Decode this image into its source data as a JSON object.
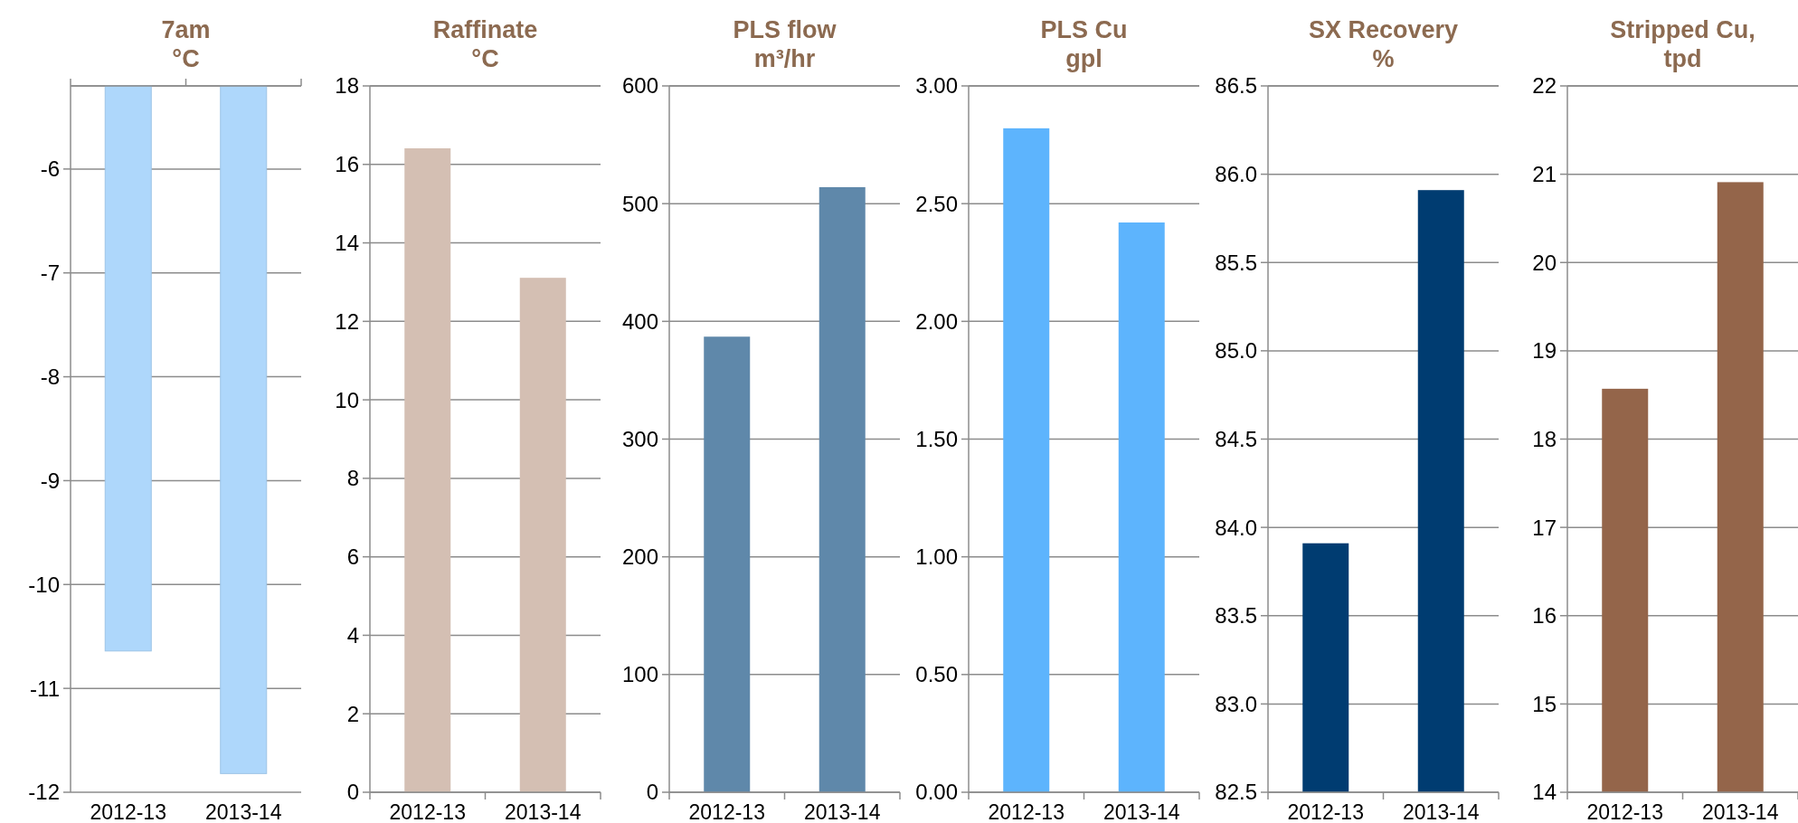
{
  "chart_data": [
    {
      "type": "bar",
      "title": "7am\n°C",
      "categories": [
        "2012-13",
        "2013-14"
      ],
      "values": [
        -10.64,
        -11.82
      ],
      "color": "#aed7fb",
      "ylim": [
        -12,
        -5.2
      ],
      "yticks": [
        -12,
        -11,
        -10,
        -9,
        -8,
        -7,
        -6
      ],
      "grid": "y"
    },
    {
      "type": "bar",
      "title": "Raffinate\n°C",
      "categories": [
        "2012-13",
        "2013-14"
      ],
      "values": [
        16.41,
        13.11
      ],
      "color": "#d4bfb3",
      "ylim": [
        0,
        18
      ],
      "yticks": [
        0,
        2,
        4,
        6,
        8,
        10,
        12,
        14,
        16,
        18
      ],
      "grid": "y"
    },
    {
      "type": "bar",
      "title": "PLS flow\nm³/hr",
      "categories": [
        "2012-13",
        "2013-14"
      ],
      "values": [
        387,
        514
      ],
      "color": "#5f88aa",
      "ylim": [
        0,
        600
      ],
      "yticks": [
        0,
        100,
        200,
        300,
        400,
        500,
        600
      ],
      "grid": "y"
    },
    {
      "type": "bar",
      "title": "PLS Cu\ngpl",
      "categories": [
        "2012-13",
        "2013-14"
      ],
      "values": [
        2.82,
        2.42
      ],
      "color": "#5db4fd",
      "ylim": [
        0,
        3
      ],
      "yticks": [
        {
          "value": 0,
          "label": "0.00"
        },
        {
          "value": 0.5,
          "label": "0.50"
        },
        {
          "value": 1,
          "label": "1.00"
        },
        {
          "value": 1.5,
          "label": "1.50"
        },
        {
          "value": 2,
          "label": "2.00"
        },
        {
          "value": 2.5,
          "label": "2.50"
        },
        {
          "value": 3,
          "label": "3.00"
        }
      ],
      "grid": "y"
    },
    {
      "type": "bar",
      "title": "SX Recovery\n%",
      "categories": [
        "2012-13",
        "2013-14"
      ],
      "values": [
        83.91,
        85.91
      ],
      "color": "#003c71",
      "ylim": [
        82.5,
        86.5
      ],
      "yticks": [
        82.5,
        {
          "value": 83,
          "label": "83.0"
        },
        83.5,
        {
          "value": 84,
          "label": "84.0"
        },
        84.5,
        {
          "value": 85,
          "label": "85.0"
        },
        85.5,
        {
          "value": 86,
          "label": "86.0"
        },
        86.5
      ],
      "grid": "y"
    },
    {
      "type": "bar",
      "title": "Stripped Cu,\ntpd",
      "categories": [
        "2012-13",
        "2013-14"
      ],
      "values": [
        18.57,
        20.91
      ],
      "color": "#94654a",
      "ylim": [
        14,
        22
      ],
      "yticks": [
        14,
        15,
        16,
        17,
        18,
        19,
        20,
        21,
        22
      ],
      "grid": "y"
    }
  ]
}
